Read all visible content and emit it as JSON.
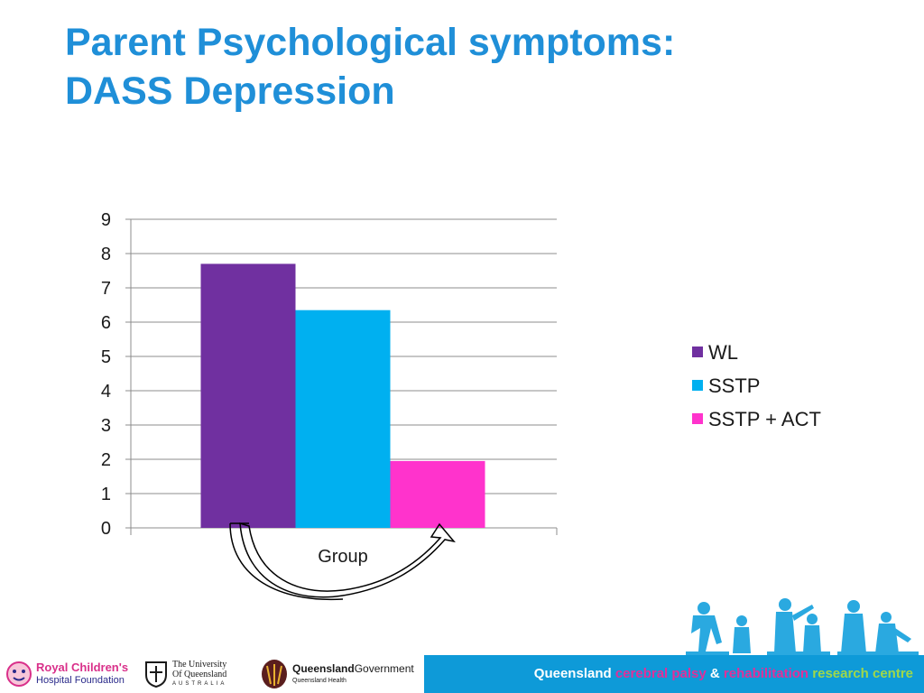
{
  "title": {
    "line1": "Parent Psychological symptoms:",
    "line2": "DASS Depression"
  },
  "chart_data": {
    "type": "bar",
    "categories": [
      ""
    ],
    "series": [
      {
        "name": "WL",
        "values": [
          7.7
        ],
        "color": "#7030a0"
      },
      {
        "name": "SSTP",
        "values": [
          6.35
        ],
        "color": "#00b0f0"
      },
      {
        "name": "SSTP + ACT",
        "values": [
          1.95
        ],
        "color": "#ff33cc"
      }
    ],
    "title": "",
    "xlabel": "Group",
    "ylabel": "",
    "ylim": [
      0,
      9
    ],
    "yticks": [
      "0",
      "1",
      "2",
      "3",
      "4",
      "5",
      "6",
      "7",
      "8",
      "9"
    ],
    "grid": true,
    "legend_position": "right"
  },
  "annotation": {
    "icon": "curved-double-arrow-icon"
  },
  "footer": {
    "logo_rch_line1": "Royal Children's",
    "logo_rch_line2": "Hospital Foundation",
    "logo_uq_line1": "The University",
    "logo_uq_line2": "Of Queensland",
    "logo_uq_line3": "AUSTRALIA",
    "logo_qg_bold": "Queensland",
    "logo_qg_rest": "Government",
    "logo_qg_sub": "Queensland Health",
    "centre_part1": "Queensland ",
    "centre_part2": "cerebral palsy",
    "centre_part3": " & ",
    "centre_part4": "rehabilitation",
    "centre_part5": " research centre"
  },
  "colors": {
    "title": "#1f8fd8",
    "footer_band": "#0e9ad8",
    "figures": "#2aa9e0"
  }
}
